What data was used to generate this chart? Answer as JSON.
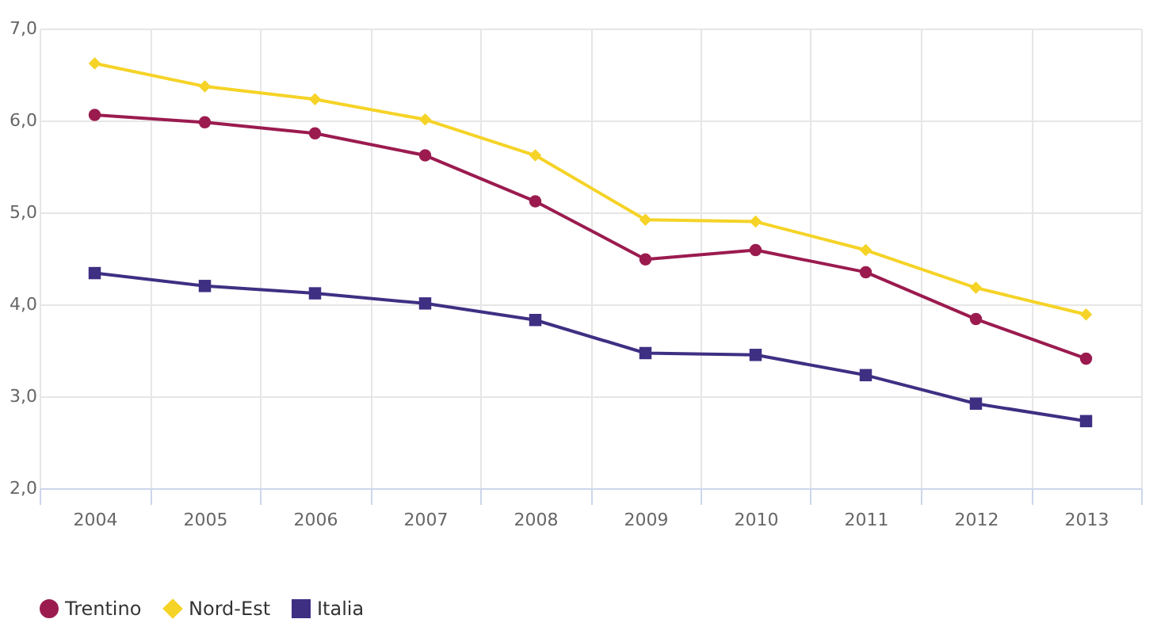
{
  "chart_data": {
    "type": "line",
    "categories": [
      "2004",
      "2005",
      "2006",
      "2007",
      "2008",
      "2009",
      "2010",
      "2011",
      "2012",
      "2013"
    ],
    "series": [
      {
        "name": "Trentino",
        "color": "#9b1b4f",
        "marker": "circle",
        "values": [
          6.06,
          5.98,
          5.86,
          5.62,
          5.12,
          4.49,
          4.59,
          4.35,
          3.84,
          3.41
        ]
      },
      {
        "name": "Nord-Est",
        "color": "#f5d327",
        "marker": "diamond",
        "values": [
          6.62,
          6.37,
          6.23,
          6.01,
          5.62,
          4.92,
          4.9,
          4.59,
          4.18,
          3.89
        ]
      },
      {
        "name": "Italia",
        "color": "#3f2f83",
        "marker": "square",
        "values": [
          4.34,
          4.2,
          4.12,
          4.01,
          3.83,
          3.47,
          3.45,
          3.23,
          2.92,
          2.73
        ]
      }
    ],
    "ylim": [
      2,
      7
    ],
    "yticks": [
      {
        "value": 2,
        "label": "2,0"
      },
      {
        "value": 3,
        "label": "3,0"
      },
      {
        "value": 4,
        "label": "4,0"
      },
      {
        "value": 5,
        "label": "5,0"
      },
      {
        "value": 6,
        "label": "6,0"
      },
      {
        "value": 7,
        "label": "7,0"
      }
    ],
    "grid": true,
    "legend": "bottom"
  }
}
